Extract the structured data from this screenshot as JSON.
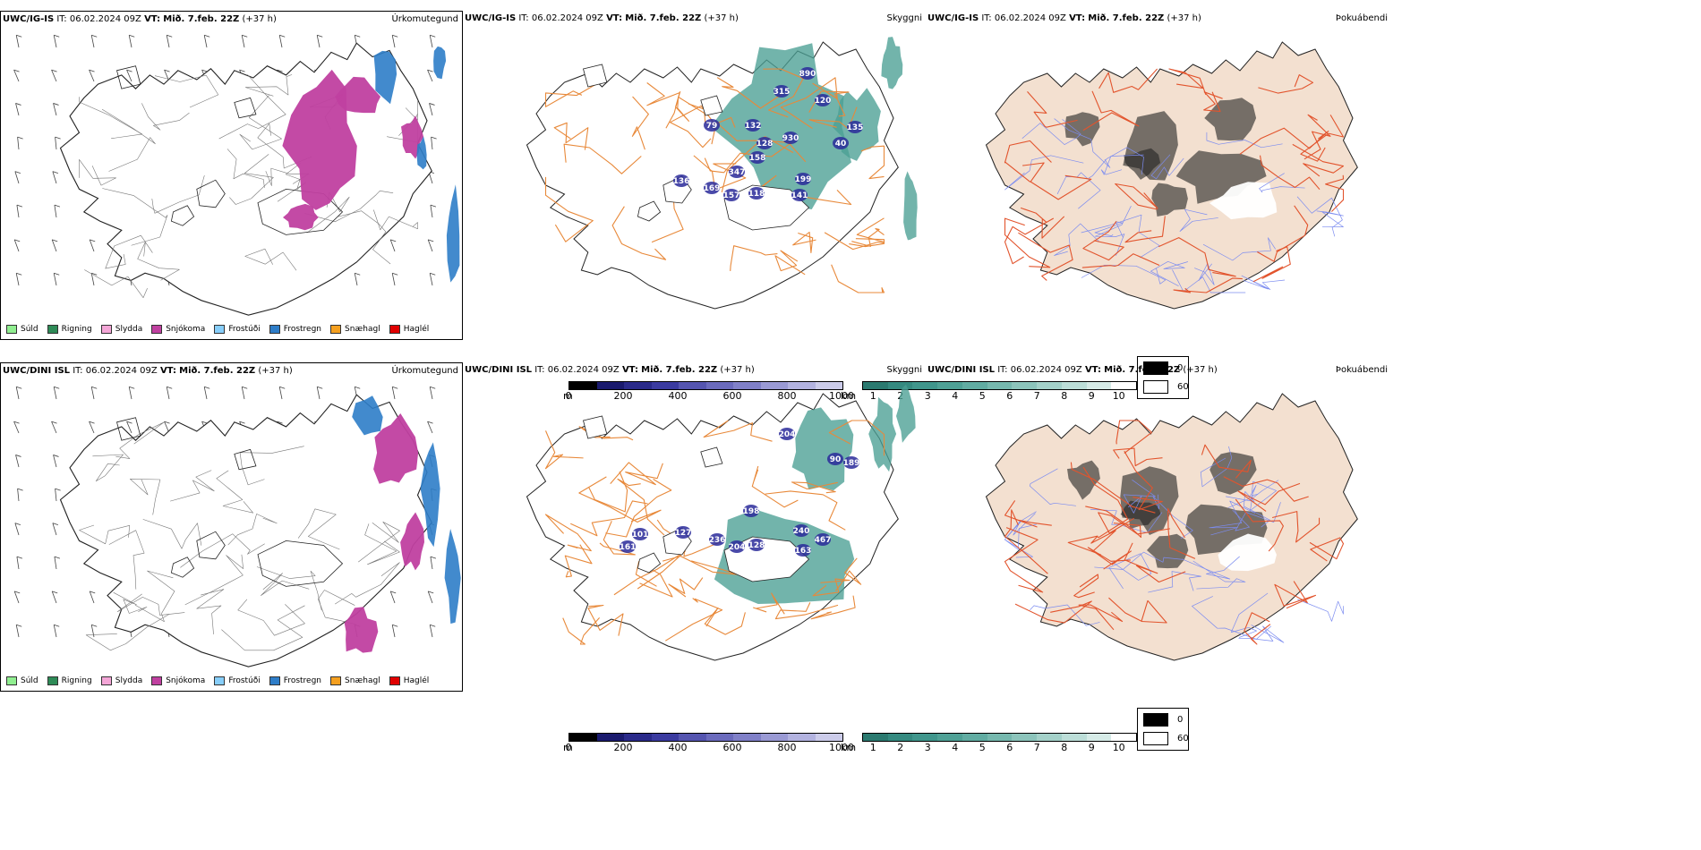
{
  "rows": [
    {
      "model": "UWC/IG-IS",
      "it_label": "IT:",
      "it_value": "06.02.2024 09Z",
      "vt_label": "VT:",
      "vt_value": "Mið. 7.feb. 22Z",
      "lead": "(+37 h)",
      "titles": [
        "Úrkomutegund",
        "Skyggni",
        "Þokuábendi"
      ],
      "visibility_labels": [
        "890",
        "315",
        "120",
        "79",
        "132",
        "128",
        "930",
        "158",
        "347",
        "135",
        "40",
        "136",
        "169",
        "199",
        "157",
        "118",
        "141"
      ]
    },
    {
      "model": "UWC/DINI ISL",
      "it_label": "IT:",
      "it_value": "06.02.2024 09Z",
      "vt_label": "VT:",
      "vt_value": "Mið. 7.feb. 22Z",
      "lead": "(+37 h)",
      "titles": [
        "Úrkomutegund",
        "Skyggni",
        "Þokuábendi"
      ],
      "visibility_labels": [
        "204",
        "90",
        "189",
        "198",
        "240",
        "467",
        "127",
        "236",
        "204",
        "128",
        "163",
        "101",
        "161"
      ]
    }
  ],
  "precip_legend": [
    {
      "label": "Súld",
      "color": "#90ee90"
    },
    {
      "label": "Rigning",
      "color": "#2e8b57"
    },
    {
      "label": "Slydda",
      "color": "#f4a6d7"
    },
    {
      "label": "Snjókoma",
      "color": "#c040a0"
    },
    {
      "label": "Frostúði",
      "color": "#87cefa"
    },
    {
      "label": "Frostregn",
      "color": "#2e7dc8"
    },
    {
      "label": "Snæhagl",
      "color": "#f5a020"
    },
    {
      "label": "Haglél",
      "color": "#e00000"
    }
  ],
  "ceiling_scale": {
    "unit": "m",
    "ticks": [
      "0",
      "200",
      "400",
      "600",
      "800",
      "1000"
    ],
    "colors": [
      "#000000",
      "#1a1a6e",
      "#2a2a8a",
      "#3b3ba0",
      "#5555b0",
      "#6b6bbd",
      "#8080c8",
      "#9a9ad4",
      "#b3b3e0",
      "#ccccea"
    ]
  },
  "visibility_scale": {
    "unit": "km",
    "ticks": [
      "1",
      "2",
      "3",
      "4",
      "5",
      "6",
      "7",
      "8",
      "9",
      "10"
    ],
    "colors": [
      "#2b7a70",
      "#358a80",
      "#40968c",
      "#4fa196",
      "#61aca2",
      "#76b8ae",
      "#8cc4bb",
      "#a4d1c9",
      "#bcded8",
      "#d6ebe7",
      "#ffffff"
    ]
  },
  "fog_key": {
    "entries": [
      {
        "value": "0",
        "color": "#000000"
      },
      {
        "value": "60",
        "color": "#ffffff"
      }
    ]
  },
  "colors": {
    "snow": "#c040a0",
    "freezing_rain": "#2e7dc8",
    "visibility_fog": "#4a9f94",
    "ceiling": "#2a2a9a",
    "roads": "#e8893a",
    "land": "#f3e0d0",
    "rivers": "#7c8cf0"
  }
}
